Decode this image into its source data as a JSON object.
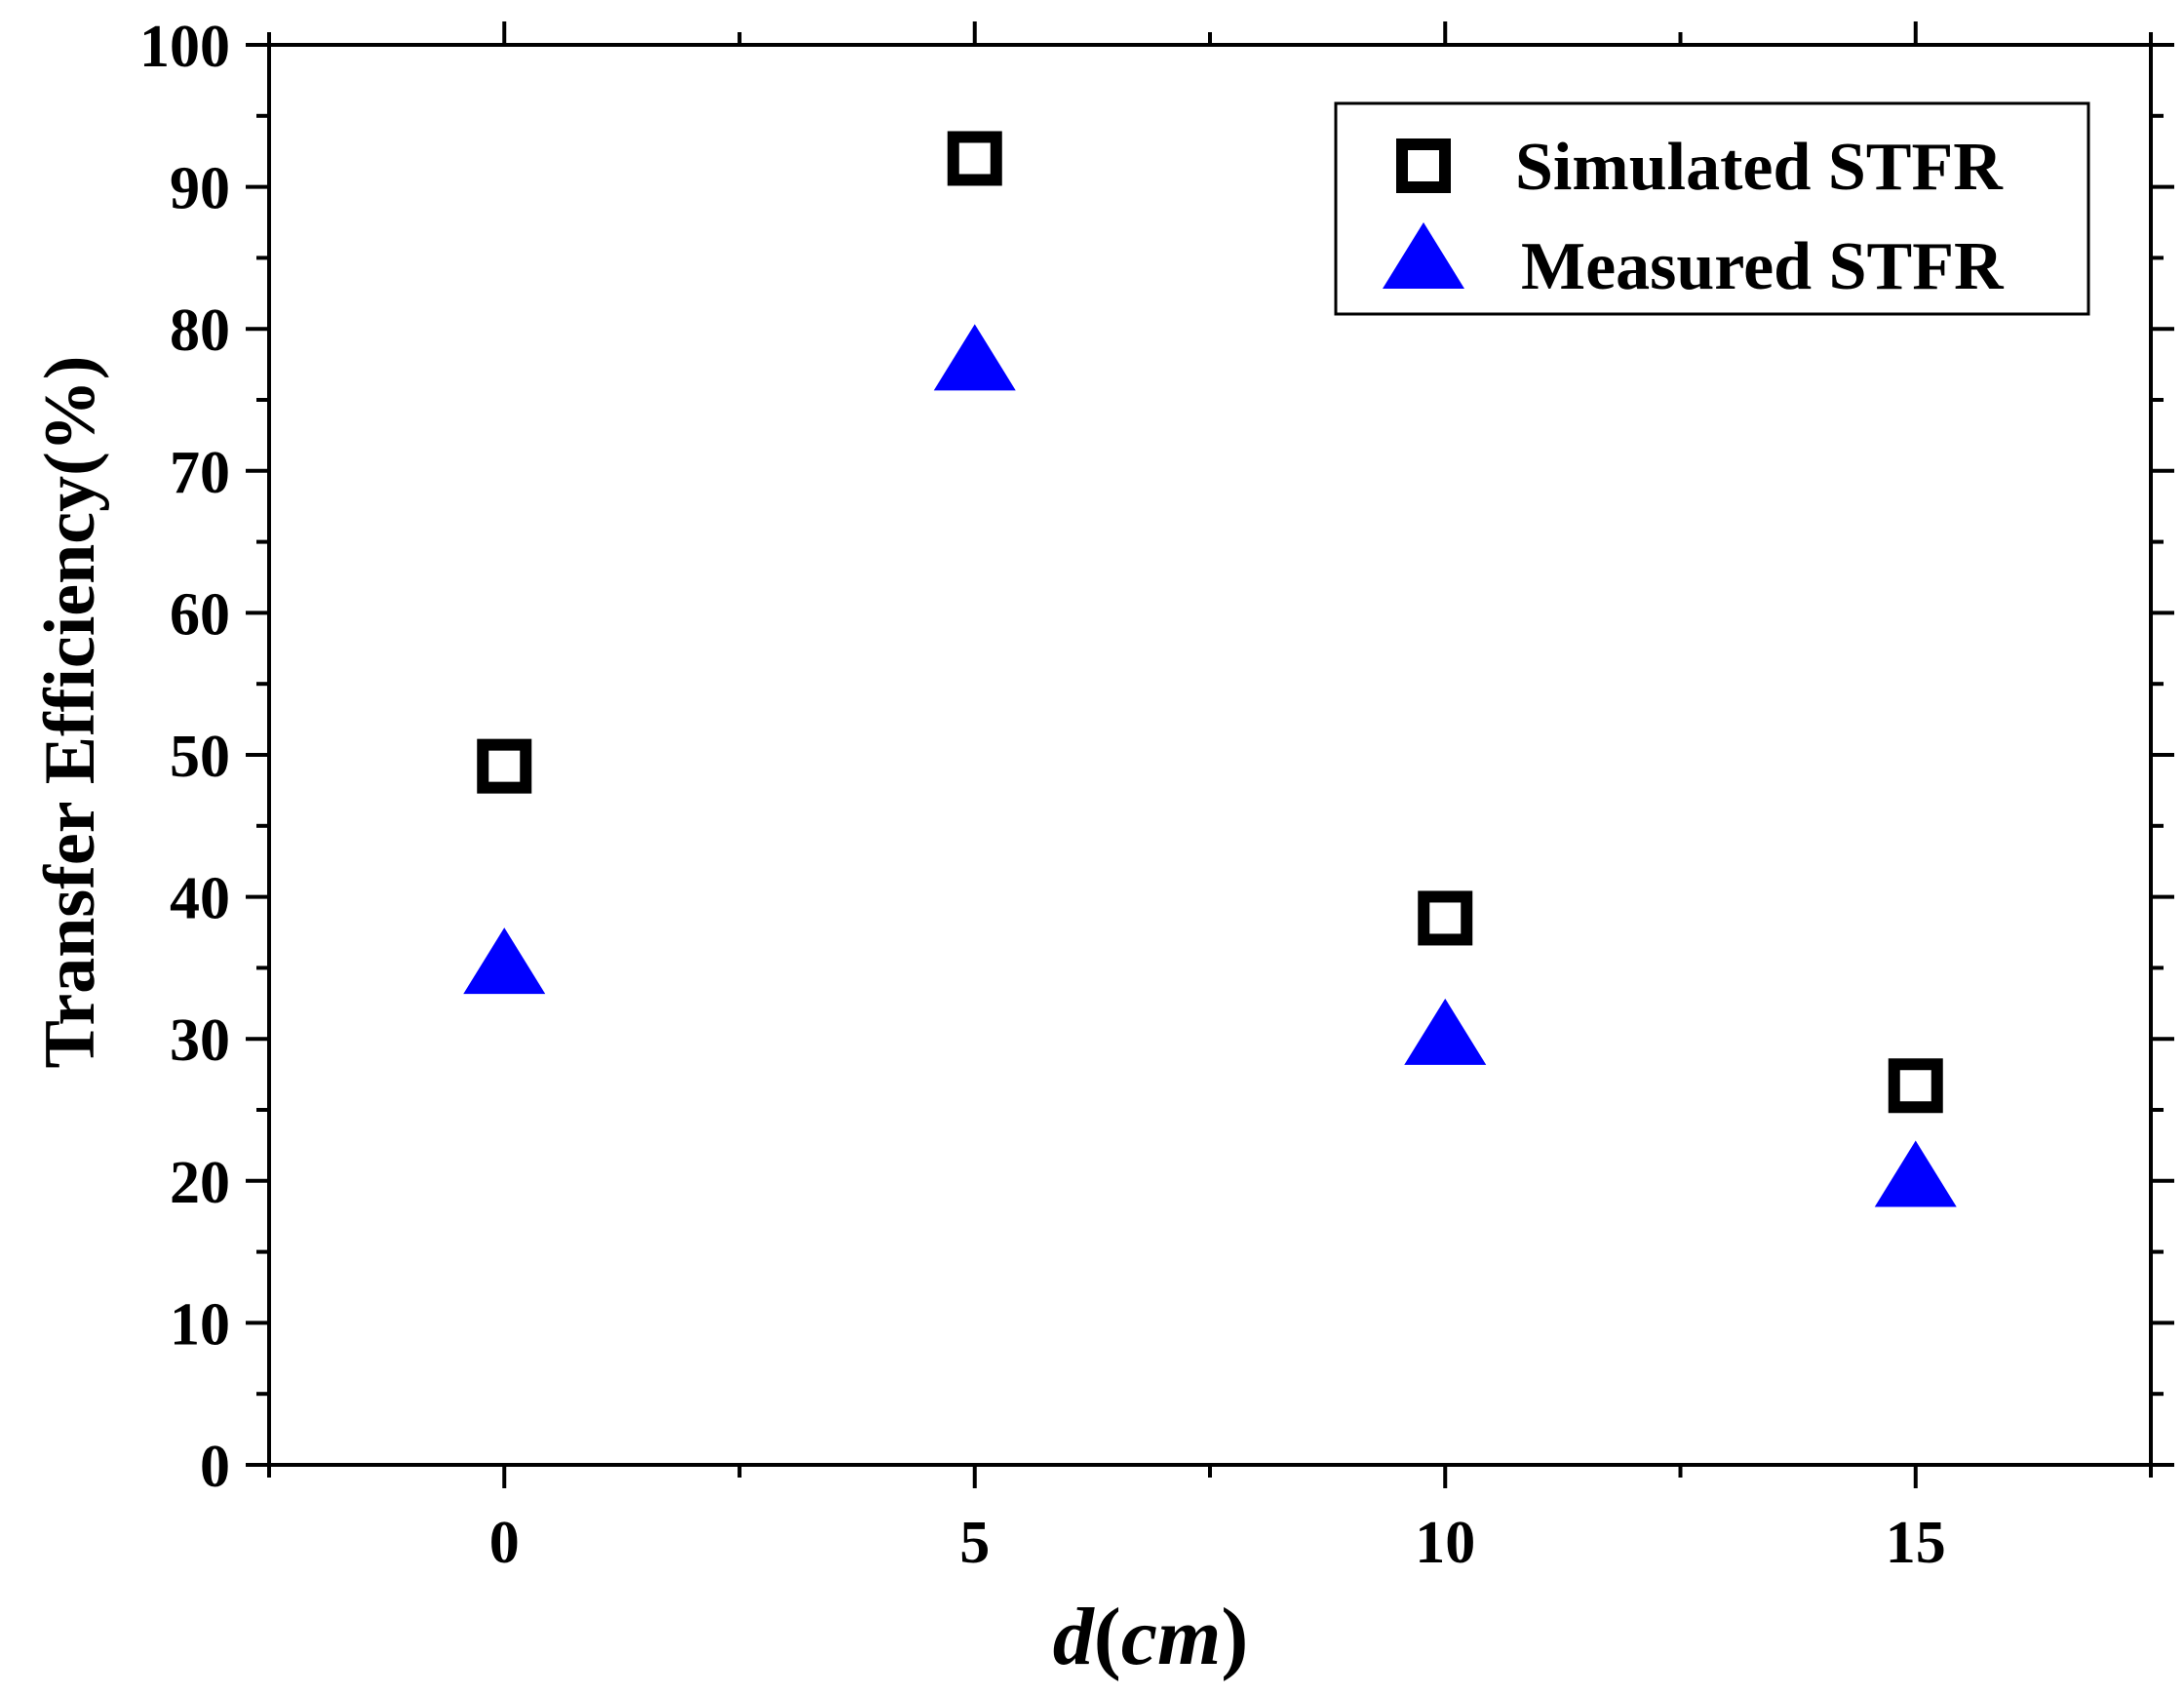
{
  "chart_data": {
    "type": "scatter",
    "title": "",
    "xlabel_italic": "d",
    "xlabel_paren": "(",
    "xlabel_unit": "cm",
    "xlabel_close": ")",
    "ylabel": "Transfer Efficiency(%)",
    "xlim": [
      -2.5,
      17.5
    ],
    "ylim": [
      0,
      100
    ],
    "xticks": [
      0,
      5,
      10,
      15
    ],
    "yticks": [
      0,
      10,
      20,
      30,
      40,
      50,
      60,
      70,
      80,
      90,
      100
    ],
    "grid": false,
    "legend_position": "top-right",
    "series": [
      {
        "name": "Simulated STFR",
        "marker": "open-square",
        "color": "#000000",
        "x": [
          0,
          5,
          10,
          15
        ],
        "y": [
          49.2,
          92.0,
          38.5,
          26.7
        ]
      },
      {
        "name": "Measured STFR",
        "marker": "filled-triangle",
        "color": "#0000ff",
        "x": [
          0,
          5,
          10,
          15
        ],
        "y": [
          35.5,
          78.0,
          30.5,
          20.5
        ]
      }
    ]
  }
}
